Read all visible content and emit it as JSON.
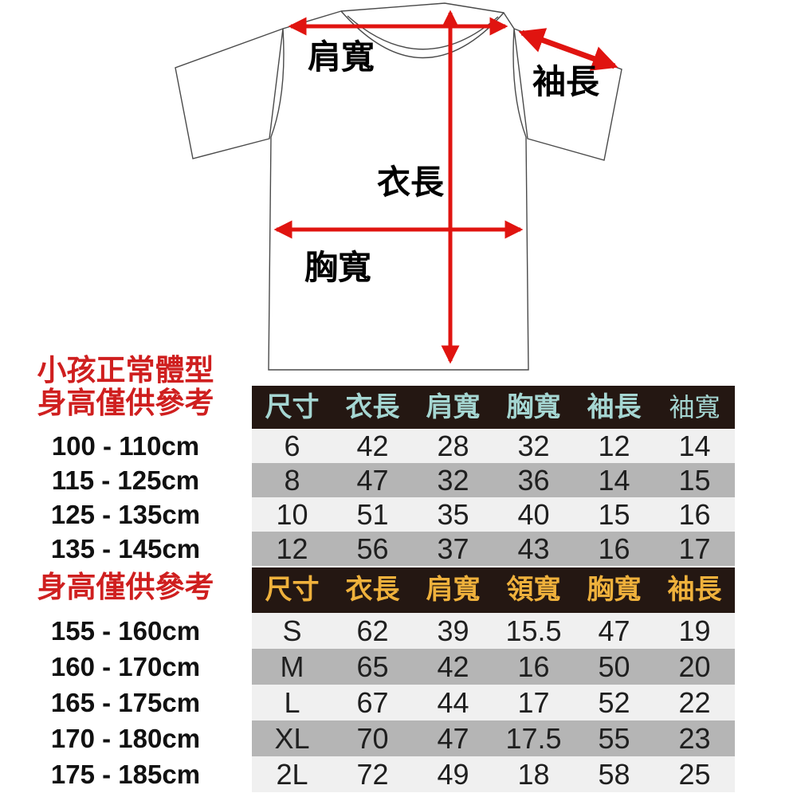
{
  "colors": {
    "note-red": "#cf1f1f",
    "arrow-red": "#e01410",
    "outline": "#4a4a4a",
    "header-bg": "#241712",
    "kids-header-text": "#a5d6d2",
    "adult-header-text": "#efb13c",
    "row-light": "#f0f0f0",
    "row-dark": "#b5b5b5",
    "ink": "#1f1f1f"
  },
  "diagram": {
    "labels": {
      "shoulder": "肩寬",
      "sleeve": "袖長",
      "length": "衣長",
      "chest": "胸寬"
    }
  },
  "kids_section": {
    "note_line1": "小孩正常體型",
    "note_line2": "身高僅供參考",
    "heights": [
      "100 - 110cm",
      "115 - 125cm",
      "125 - 135cm",
      "135 - 145cm"
    ],
    "table": {
      "headers": [
        "尺寸",
        "衣長",
        "肩寬",
        "胸寬",
        "袖長",
        "袖寬"
      ],
      "rows": [
        [
          "6",
          "42",
          "28",
          "32",
          "12",
          "14"
        ],
        [
          "8",
          "47",
          "32",
          "36",
          "14",
          "15"
        ],
        [
          "10",
          "51",
          "35",
          "40",
          "15",
          "16"
        ],
        [
          "12",
          "56",
          "37",
          "43",
          "16",
          "17"
        ]
      ]
    }
  },
  "adult_section": {
    "note": "身高僅供參考",
    "heights": [
      "155 - 160cm",
      "160 - 170cm",
      "165 - 175cm",
      "170 - 180cm",
      "175 - 185cm"
    ],
    "table": {
      "headers": [
        "尺寸",
        "衣長",
        "肩寬",
        "領寬",
        "胸寬",
        "袖長"
      ],
      "rows": [
        [
          "S",
          "62",
          "39",
          "15.5",
          "47",
          "19"
        ],
        [
          "M",
          "65",
          "42",
          "16",
          "50",
          "20"
        ],
        [
          "L",
          "67",
          "44",
          "17",
          "52",
          "22"
        ],
        [
          "XL",
          "70",
          "47",
          "17.5",
          "55",
          "23"
        ],
        [
          "2L",
          "72",
          "49",
          "18",
          "58",
          "25"
        ]
      ]
    }
  }
}
